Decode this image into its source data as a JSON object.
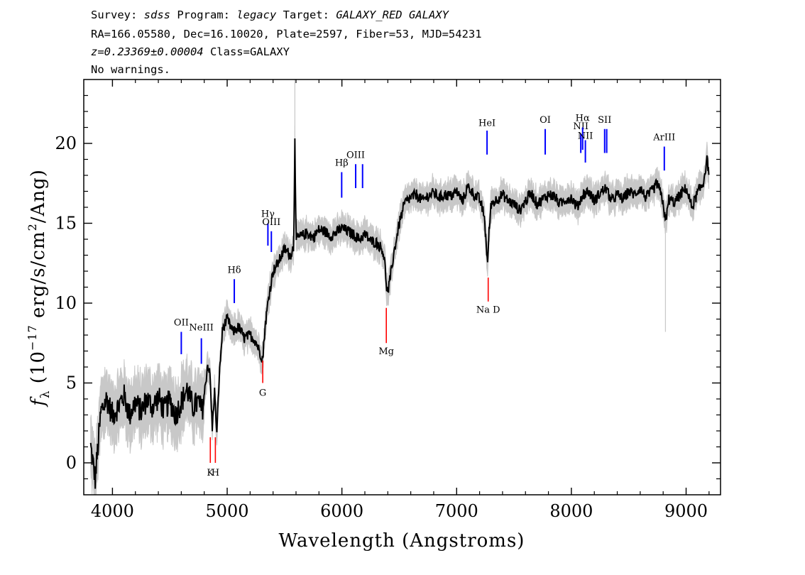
{
  "header": {
    "line1_prefix": "Survey: ",
    "survey": "sdss",
    "line1_mid": " Program: ",
    "program": "legacy",
    "line1_mid2": " Target: ",
    "target": "GALAXY_RED GALAXY",
    "line2": "RA=166.05580, Dec=16.10020, Plate=2597, Fiber=53, MJD=54231",
    "redshift": "z=0.23369±0.00004",
    "class_text": " Class=GALAXY",
    "line4": "No warnings."
  },
  "chart_data": {
    "type": "line",
    "xlabel": "Wavelength (Angstroms)",
    "ylabel_main": "f",
    "ylabel_sub": "λ",
    "ylabel_rest": "(10",
    "ylabel_exp": "−17",
    "ylabel_units": "erg/s/cm",
    "ylabel_units_exp": "2",
    "ylabel_tail": "/Ang)",
    "xlim": [
      3750,
      9300
    ],
    "ylim": [
      -2,
      24
    ],
    "xticks": [
      4000,
      5000,
      6000,
      7000,
      8000,
      9000
    ],
    "yticks": [
      0,
      5,
      10,
      15,
      20
    ],
    "colors": {
      "flux": "#000000",
      "noise": "#c8c8c8",
      "emission": "#0000ff",
      "absorption": "#ff0000"
    },
    "series": [
      {
        "x": [
          3810,
          3850,
          3900,
          3950,
          4000,
          4050,
          4100,
          4150,
          4200,
          4250,
          4300,
          4350,
          4400,
          4450,
          4500,
          4550,
          4600,
          4650,
          4700,
          4750,
          4780,
          4800,
          4830,
          4850,
          4870,
          4890,
          4910,
          4930,
          4960,
          5000,
          5050,
          5100,
          5150,
          5200,
          5250,
          5280,
          5310,
          5330,
          5360,
          5400,
          5450,
          5500,
          5550,
          5580,
          5590,
          5600,
          5650,
          5700,
          5750,
          5800,
          5850,
          5900,
          5950,
          6000,
          6050,
          6100,
          6150,
          6200,
          6250,
          6300,
          6350,
          6370,
          6390,
          6400,
          6420,
          6450,
          6500,
          6550,
          6600,
          6650,
          6700,
          6750,
          6800,
          6850,
          6900,
          6950,
          7000,
          7050,
          7100,
          7150,
          7200,
          7240,
          7260,
          7270,
          7280,
          7300,
          7350,
          7400,
          7450,
          7500,
          7550,
          7600,
          7650,
          7700,
          7750,
          7800,
          7850,
          7900,
          7950,
          8000,
          8050,
          8100,
          8150,
          8200,
          8250,
          8300,
          8350,
          8400,
          8450,
          8500,
          8550,
          8600,
          8650,
          8700,
          8750,
          8800,
          8820,
          8850,
          8900,
          8950,
          9000,
          9050,
          9100,
          9150,
          9180,
          9200
        ],
        "y": [
          1.0,
          -1.0,
          3.2,
          4.0,
          3.0,
          3.5,
          4.2,
          3.0,
          3.8,
          3.2,
          4.0,
          3.5,
          4.1,
          3.3,
          3.9,
          3.0,
          3.8,
          4.6,
          3.5,
          3.8,
          3.2,
          4.2,
          6.2,
          5.5,
          2.2,
          4.5,
          1.8,
          5.3,
          8.4,
          9.0,
          8.2,
          8.5,
          7.8,
          8.0,
          7.6,
          7.0,
          6.5,
          8.5,
          10.3,
          12.0,
          12.6,
          13.4,
          13.0,
          13.5,
          20.5,
          14.0,
          14.2,
          14.4,
          14.1,
          14.6,
          14.5,
          14.2,
          14.4,
          14.7,
          14.5,
          14.3,
          14.0,
          14.3,
          13.9,
          13.8,
          13.4,
          12.8,
          11.0,
          10.6,
          11.5,
          13.0,
          15.0,
          16.3,
          16.6,
          16.8,
          16.4,
          16.7,
          16.9,
          16.6,
          16.8,
          16.7,
          17.0,
          16.4,
          17.3,
          16.8,
          16.5,
          15.5,
          13.5,
          12.4,
          14.2,
          16.2,
          16.5,
          16.8,
          16.4,
          16.2,
          15.8,
          16.4,
          16.9,
          16.2,
          16.5,
          16.8,
          16.7,
          16.2,
          16.5,
          16.6,
          16.0,
          16.8,
          17.0,
          16.4,
          16.9,
          17.2,
          16.4,
          16.8,
          16.5,
          17.0,
          16.8,
          17.2,
          16.6,
          17.0,
          17.5,
          16.3,
          15.0,
          16.5,
          16.3,
          16.8,
          17.2,
          16.0,
          16.9,
          17.5,
          19.0,
          18.2
        ]
      }
    ],
    "lines": [
      {
        "label": "OII",
        "x": 4600,
        "kind": "emission",
        "y1": 6.8,
        "y2": 8.2,
        "labelY": 8.6
      },
      {
        "label": "NeIII",
        "x": 4775,
        "kind": "emission",
        "y1": 6.2,
        "y2": 7.8,
        "labelY": 8.3
      },
      {
        "label": "Hδ",
        "x": 5062,
        "kind": "emission",
        "y1": 10.0,
        "y2": 11.5,
        "labelY": 11.9
      },
      {
        "label": "Hγ",
        "x": 5355,
        "kind": "emission",
        "y1": 13.6,
        "y2": 15.0,
        "labelY": 15.4
      },
      {
        "label": "OIII",
        "x": 5385,
        "kind": "emission",
        "y1": 13.2,
        "y2": 14.5,
        "labelY": 14.9
      },
      {
        "label": "Hβ",
        "x": 5998,
        "kind": "emission",
        "y1": 16.6,
        "y2": 18.2,
        "labelY": 18.6
      },
      {
        "label": "OIII",
        "x": 6120,
        "kind": "emission",
        "y1": 17.2,
        "y2": 18.7,
        "labelY": 19.1
      },
      {
        "label": "OIII",
        "x": 6180,
        "kind": "emission",
        "y1": 17.2,
        "y2": 18.7,
        "labelY": -100
      },
      {
        "label": "HeI",
        "x": 7265,
        "kind": "emission",
        "y1": 19.3,
        "y2": 20.8,
        "labelY": 21.1
      },
      {
        "label": "OI",
        "x": 7772,
        "kind": "emission",
        "y1": 19.3,
        "y2": 20.9,
        "labelY": 21.3
      },
      {
        "label": "NII",
        "x": 8082,
        "kind": "emission",
        "y1": 19.4,
        "y2": 20.6,
        "labelY": 20.9
      },
      {
        "label": "Hα",
        "x": 8098,
        "kind": "emission",
        "y1": 19.6,
        "y2": 21.0,
        "labelY": 21.4
      },
      {
        "label": "NII",
        "x": 8122,
        "kind": "emission",
        "y1": 18.8,
        "y2": 20.2,
        "labelY": 20.3
      },
      {
        "label": "SII",
        "x": 8290,
        "kind": "emission",
        "y1": 19.4,
        "y2": 20.9,
        "labelY": 21.3
      },
      {
        "label": "SII",
        "x": 8308,
        "kind": "emission",
        "y1": 19.4,
        "y2": 20.9,
        "labelY": -100
      },
      {
        "label": "ArIII",
        "x": 8810,
        "kind": "emission",
        "y1": 18.3,
        "y2": 19.8,
        "labelY": 20.2
      },
      {
        "label": "K",
        "x": 4853,
        "kind": "absorption",
        "y1": 0.0,
        "y2": 1.6,
        "labelY": -0.8
      },
      {
        "label": "H",
        "x": 4897,
        "kind": "absorption",
        "y1": 0.0,
        "y2": 1.6,
        "labelY": -0.8
      },
      {
        "label": "G",
        "x": 5310,
        "kind": "absorption",
        "y1": 5.0,
        "y2": 6.4,
        "labelY": 4.2
      },
      {
        "label": "Mg",
        "x": 6387,
        "kind": "absorption",
        "y1": 7.5,
        "y2": 9.7,
        "labelY": 6.8
      },
      {
        "label": "Na D",
        "x": 7275,
        "kind": "absorption",
        "y1": 10.1,
        "y2": 11.6,
        "labelY": 9.4
      }
    ]
  }
}
